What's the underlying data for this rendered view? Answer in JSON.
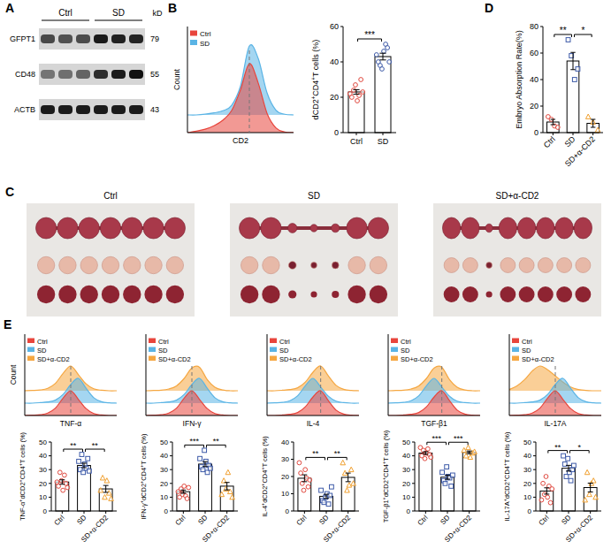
{
  "blot": {
    "panel": "A",
    "groups": [
      "Ctrl",
      "SD"
    ],
    "unit": "kD",
    "rows": [
      {
        "name": "GFPT1",
        "kd": 79,
        "intensities": [
          0.72,
          0.68,
          0.7,
          0.95,
          0.92,
          0.9
        ]
      },
      {
        "name": "CD48",
        "kd": 55,
        "intensities": [
          0.5,
          0.52,
          0.58,
          0.85,
          0.95,
          1
        ]
      },
      {
        "name": "ACTB",
        "kd": 43,
        "intensities": [
          0.95,
          0.95,
          0.95,
          0.95,
          0.95,
          0.95
        ]
      }
    ]
  },
  "photos": {
    "panel": "C",
    "groups": [
      {
        "label": "Ctrl",
        "sizes": [
          1,
          1,
          1,
          1,
          1,
          1,
          1
        ]
      },
      {
        "label": "SD",
        "sizes": [
          1,
          1,
          0.45,
          0.35,
          0.4,
          1,
          1
        ]
      },
      {
        "label": "SD+α-CD2",
        "sizes": [
          1,
          1,
          0.4,
          1,
          1,
          1,
          1,
          1
        ]
      }
    ]
  },
  "chart_data": [
    {
      "type": "ridgeline",
      "panel": "B",
      "x": [
        0,
        1,
        2,
        3,
        4,
        5,
        6,
        7,
        8,
        9,
        10,
        11,
        12
      ],
      "xlim": [
        0,
        12
      ],
      "ylim": [
        0,
        1
      ],
      "xlabel": "CD2",
      "ylabel": "Count",
      "tick_labels": false,
      "legend": "top-left",
      "reference_x": 7,
      "series": [
        {
          "name": "Ctrl",
          "color": "#e8453c",
          "values": [
            0,
            0.02,
            0.05,
            0.1,
            0.18,
            0.32,
            0.62,
            1,
            0.72,
            0.28,
            0.07,
            0.01,
            0
          ]
        },
        {
          "name": "SD",
          "color": "#5ab4e5",
          "values": [
            0,
            0,
            0.01,
            0.03,
            0.06,
            0.14,
            0.42,
            1,
            0.82,
            0.32,
            0.07,
            0.01,
            0
          ]
        }
      ]
    },
    {
      "type": "bar",
      "ylabel": "dCD2+CD4+T cells (%)",
      "categories": [
        "Ctrl",
        "SD"
      ],
      "values": [
        23,
        43
      ],
      "errors": [
        1.3,
        1.9
      ],
      "ylim": [
        0,
        60
      ],
      "yticks": [
        0,
        20,
        40,
        60
      ],
      "color": "#ffffff",
      "points": [
        {
          "color": "#e0483e",
          "marker": "circle",
          "values": [
            22,
            20,
            24,
            27,
            18,
            21,
            30,
            23
          ]
        },
        {
          "color": "#3d5aa8",
          "marker": "circle",
          "values": [
            44,
            40,
            38,
            36,
            46,
            50,
            48,
            40
          ]
        }
      ],
      "comparisons": [
        {
          "from": 0,
          "to": 1,
          "label": "***"
        }
      ]
    },
    {
      "type": "bar",
      "panel": "D",
      "ylabel": "Embryo Absorption Rate(%)",
      "categories": [
        "Ctrl",
        "SD",
        "SD+α-CD2"
      ],
      "values": [
        8,
        54,
        7
      ],
      "errors": [
        2,
        6.5,
        3
      ],
      "ylim": [
        0,
        80
      ],
      "yticks": [
        0,
        20,
        40,
        60,
        80
      ],
      "color": "#ffffff",
      "points": [
        {
          "color": "#e0483e",
          "marker": "circle",
          "values": [
            12,
            10,
            5,
            4
          ]
        },
        {
          "color": "#3d5aa8",
          "marker": "square",
          "values": [
            70,
            58,
            40,
            48
          ]
        },
        {
          "color": "#f0a030",
          "marker": "triangle",
          "values": [
            12,
            8,
            2
          ]
        }
      ],
      "comparisons": [
        {
          "from": 0,
          "to": 1,
          "label": "**"
        },
        {
          "from": 1,
          "to": 2,
          "label": "*"
        }
      ]
    },
    {
      "type": "ridgeline",
      "panel": "E",
      "x": [
        0,
        1,
        2,
        3,
        4,
        5,
        6,
        7,
        8,
        9,
        10,
        11,
        12
      ],
      "xlim": [
        0,
        12
      ],
      "ylim": [
        0,
        1
      ],
      "xlabel": "TNF-α",
      "ylabel": "Count",
      "tick_labels": false,
      "legend": "top-left",
      "reference_x": 6,
      "series": [
        {
          "name": "Ctrl",
          "color": "#e8453c",
          "values": [
            0,
            0.01,
            0.03,
            0.1,
            0.3,
            0.7,
            1,
            0.65,
            0.28,
            0.08,
            0.02,
            0,
            0
          ]
        },
        {
          "name": "SD",
          "color": "#5ab4e5",
          "values": [
            0,
            0,
            0.02,
            0.05,
            0.12,
            0.35,
            0.75,
            1,
            0.6,
            0.22,
            0.06,
            0.01,
            0
          ]
        },
        {
          "name": "SD+α-CD2",
          "color": "#f5a742",
          "values": [
            0,
            0.01,
            0.03,
            0.1,
            0.3,
            0.7,
            1,
            0.65,
            0.28,
            0.08,
            0.02,
            0,
            0
          ]
        }
      ]
    },
    {
      "type": "ridgeline",
      "x": [
        0,
        1,
        2,
        3,
        4,
        5,
        6,
        7,
        8,
        9,
        10,
        11,
        12
      ],
      "xlim": [
        0,
        12
      ],
      "ylim": [
        0,
        1
      ],
      "xlabel": "IFN-γ",
      "tick_labels": false,
      "legend": "top-left",
      "reference_x": 6,
      "series": [
        {
          "name": "Ctrl",
          "color": "#e8453c",
          "values": [
            0,
            0.01,
            0.03,
            0.1,
            0.3,
            0.7,
            1,
            0.65,
            0.28,
            0.08,
            0.02,
            0,
            0
          ]
        },
        {
          "name": "SD",
          "color": "#5ab4e5",
          "values": [
            0,
            0,
            0.02,
            0.05,
            0.12,
            0.35,
            0.75,
            1,
            0.6,
            0.22,
            0.06,
            0.01,
            0
          ]
        },
        {
          "name": "SD+α-CD2",
          "color": "#f5a742",
          "values": [
            0,
            0.01,
            0.02,
            0.07,
            0.2,
            0.5,
            0.92,
            0.95,
            0.45,
            0.14,
            0.03,
            0,
            0
          ]
        }
      ]
    },
    {
      "type": "ridgeline",
      "x": [
        0,
        1,
        2,
        3,
        4,
        5,
        6,
        7,
        8,
        9,
        10,
        11,
        12
      ],
      "xlim": [
        0,
        12
      ],
      "ylim": [
        0,
        1
      ],
      "xlabel": "IL-4",
      "tick_labels": false,
      "legend": "top-left",
      "reference_x": 7,
      "series": [
        {
          "name": "Ctrl",
          "color": "#e8453c",
          "values": [
            0,
            0,
            0.02,
            0.05,
            0.12,
            0.35,
            0.75,
            1,
            0.6,
            0.22,
            0.06,
            0.01,
            0
          ]
        },
        {
          "name": "SD",
          "color": "#5ab4e5",
          "values": [
            0,
            0.01,
            0.03,
            0.1,
            0.3,
            0.7,
            1,
            0.65,
            0.28,
            0.08,
            0.02,
            0,
            0
          ]
        },
        {
          "name": "SD+α-CD2",
          "color": "#f5a742",
          "values": [
            0,
            0,
            0.02,
            0.05,
            0.12,
            0.35,
            0.75,
            1,
            0.6,
            0.22,
            0.06,
            0.01,
            0
          ]
        }
      ]
    },
    {
      "type": "ridgeline",
      "x": [
        0,
        1,
        2,
        3,
        4,
        5,
        6,
        7,
        8,
        9,
        10,
        11,
        12
      ],
      "xlim": [
        0,
        12
      ],
      "ylim": [
        0,
        1
      ],
      "xlabel": "TGF-β1",
      "tick_labels": false,
      "legend": "top-left",
      "reference_x": 7,
      "series": [
        {
          "name": "Ctrl",
          "color": "#e8453c",
          "values": [
            0,
            0,
            0.02,
            0.05,
            0.12,
            0.35,
            0.75,
            1,
            0.6,
            0.22,
            0.06,
            0.01,
            0
          ]
        },
        {
          "name": "SD",
          "color": "#5ab4e5",
          "values": [
            0,
            0.01,
            0.03,
            0.1,
            0.3,
            0.7,
            1,
            0.65,
            0.28,
            0.08,
            0.02,
            0,
            0
          ]
        },
        {
          "name": "SD+α-CD2",
          "color": "#f5a742",
          "values": [
            0,
            0.01,
            0.02,
            0.07,
            0.2,
            0.5,
            0.92,
            0.95,
            0.45,
            0.14,
            0.03,
            0,
            0
          ]
        }
      ]
    },
    {
      "type": "ridgeline",
      "x": [
        0,
        1,
        2,
        3,
        4,
        5,
        6,
        7,
        8,
        9,
        10,
        11,
        12
      ],
      "xlim": [
        0,
        12
      ],
      "ylim": [
        0,
        1
      ],
      "xlabel": "IL-17A",
      "tick_labels": false,
      "legend": "top-left",
      "reference_x": 6,
      "series": [
        {
          "name": "Ctrl",
          "color": "#e8453c",
          "values": [
            0,
            0.01,
            0.03,
            0.1,
            0.3,
            0.7,
            1,
            0.65,
            0.28,
            0.08,
            0.02,
            0,
            0
          ]
        },
        {
          "name": "SD",
          "color": "#5ab4e5",
          "values": [
            0,
            0,
            0.02,
            0.05,
            0.12,
            0.35,
            0.75,
            1,
            0.6,
            0.22,
            0.06,
            0.01,
            0
          ]
        },
        {
          "name": "SD+α-CD2",
          "color": "#f5a742",
          "values": [
            0.05,
            0.2,
            0.45,
            0.8,
            1,
            0.85,
            0.6,
            0.35,
            0.15,
            0.05,
            0.01,
            0,
            0
          ]
        }
      ]
    },
    {
      "type": "bar",
      "ylabel": "TNF-α+dCD2+CD4+T cells (%)",
      "categories": [
        "Ctrl",
        "SD",
        "SD+α-CD2"
      ],
      "values": [
        21,
        33,
        16
      ],
      "errors": [
        1.6,
        1.6,
        2.5
      ],
      "ylim": [
        0,
        50
      ],
      "yticks": [
        0,
        10,
        20,
        30,
        40,
        50
      ],
      "color": "#ffffff",
      "points": [
        {
          "color": "#e0483e",
          "marker": "circle",
          "values": [
            21,
            18,
            28,
            22,
            15,
            26,
            20,
            17
          ]
        },
        {
          "color": "#3d5aa8",
          "marker": "square",
          "values": [
            36,
            30,
            41,
            28,
            34,
            31,
            38,
            29
          ]
        },
        {
          "color": "#f0a030",
          "marker": "triangle",
          "values": [
            15,
            24,
            10,
            22,
            13,
            9
          ]
        }
      ],
      "comparisons": [
        {
          "from": 0,
          "to": 1,
          "label": "**"
        },
        {
          "from": 1,
          "to": 2,
          "label": "**"
        }
      ]
    },
    {
      "type": "bar",
      "ylabel": "IFN-γ+dCD2+CD4+T cells (%)",
      "categories": [
        "Ctrl",
        "SD",
        "SD+α-CD2"
      ],
      "values": [
        14,
        34,
        18
      ],
      "errors": [
        1.2,
        1.8,
        2.7
      ],
      "ylim": [
        0,
        50
      ],
      "yticks": [
        0,
        10,
        20,
        30,
        40,
        50
      ],
      "color": "#ffffff",
      "points": [
        {
          "color": "#e0483e",
          "marker": "circle",
          "values": [
            14,
            10,
            16,
            12,
            18,
            11,
            9,
            17
          ]
        },
        {
          "color": "#3d5aa8",
          "marker": "square",
          "values": [
            38,
            32,
            30,
            44,
            36,
            28,
            33,
            31
          ]
        },
        {
          "color": "#f0a030",
          "marker": "triangle",
          "values": [
            12,
            22,
            16,
            28,
            14,
            10
          ]
        }
      ],
      "comparisons": [
        {
          "from": 0,
          "to": 1,
          "label": "***"
        },
        {
          "from": 1,
          "to": 2,
          "label": "**"
        }
      ]
    },
    {
      "type": "bar",
      "ylabel": "IL-4+dCD2+CD4+T cells (%)",
      "categories": [
        "Ctrl",
        "SD",
        "SD+α-CD2"
      ],
      "values": [
        19,
        8.5,
        19.5
      ],
      "errors": [
        2,
        1.2,
        2.5
      ],
      "ylim": [
        0,
        40
      ],
      "yticks": [
        0,
        10,
        20,
        30,
        40
      ],
      "color": "#ffffff",
      "points": [
        {
          "color": "#e0483e",
          "marker": "circle",
          "values": [
            28,
            22,
            16,
            12,
            24,
            19,
            14,
            18
          ]
        },
        {
          "color": "#3d5aa8",
          "marker": "square",
          "values": [
            12,
            6,
            5,
            8,
            10,
            4,
            9,
            14
          ]
        },
        {
          "color": "#f0a030",
          "marker": "triangle",
          "values": [
            28,
            22,
            12,
            15,
            24,
            16
          ]
        }
      ],
      "comparisons": [
        {
          "from": 0,
          "to": 1,
          "label": "**"
        },
        {
          "from": 1,
          "to": 2,
          "label": "**"
        }
      ]
    },
    {
      "type": "bar",
      "ylabel": "TGF-β1+dCD2+CD4+T cells (%)",
      "categories": [
        "Ctrl",
        "SD",
        "SD+α-CD2"
      ],
      "values": [
        42,
        24.5,
        42.5
      ],
      "errors": [
        1,
        1.5,
        1
      ],
      "ylim": [
        0,
        50
      ],
      "yticks": [
        0,
        10,
        20,
        30,
        40,
        50
      ],
      "color": "#ffffff",
      "points": [
        {
          "color": "#e0483e",
          "marker": "circle",
          "values": [
            46,
            40,
            44,
            38,
            42,
            45,
            41,
            39
          ]
        },
        {
          "color": "#3d5aa8",
          "marker": "square",
          "values": [
            28,
            22,
            20,
            32,
            25,
            24,
            18,
            26
          ]
        },
        {
          "color": "#f0a030",
          "marker": "triangle",
          "values": [
            44,
            40,
            46,
            39,
            42,
            43
          ]
        }
      ],
      "comparisons": [
        {
          "from": 0,
          "to": 1,
          "label": "***"
        },
        {
          "from": 1,
          "to": 2,
          "label": "***"
        }
      ]
    },
    {
      "type": "bar",
      "ylabel": "IL-17A+dCD2+CD4+T cells (%)",
      "categories": [
        "Ctrl",
        "SD",
        "SD+α-CD2"
      ],
      "values": [
        14.5,
        31,
        17
      ],
      "errors": [
        2.3,
        2.1,
        3.2
      ],
      "ylim": [
        0,
        50
      ],
      "yticks": [
        0,
        10,
        20,
        30,
        40,
        50
      ],
      "color": "#ffffff",
      "points": [
        {
          "color": "#e0483e",
          "marker": "circle",
          "values": [
            8,
            20,
            12,
            25,
            10,
            18,
            6,
            16
          ]
        },
        {
          "color": "#3d5aa8",
          "marker": "square",
          "values": [
            40,
            34,
            25,
            38,
            28,
            22,
            30,
            33
          ]
        },
        {
          "color": "#f0a030",
          "marker": "triangle",
          "values": [
            8,
            28,
            12,
            20,
            22,
            10
          ]
        }
      ],
      "comparisons": [
        {
          "from": 0,
          "to": 1,
          "label": "**"
        },
        {
          "from": 1,
          "to": 2,
          "label": "*"
        }
      ]
    }
  ]
}
